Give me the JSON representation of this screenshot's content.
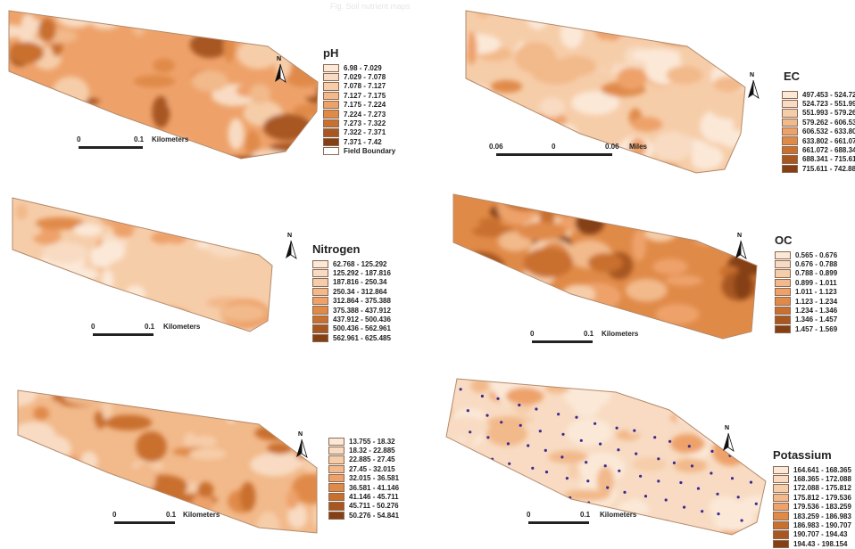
{
  "header": {
    "text": "Fig. Soil nutrient maps"
  },
  "maps": [
    {
      "id": "ph",
      "legend_title": "pH",
      "unit": "Kilometers",
      "scale_zero": "0",
      "scale_mid": "0.1",
      "extra_legend": "Field Boundary",
      "classes": [
        "6.98 - 7.029",
        "7.029 - 7.078",
        "7.078 - 7.127",
        "7.127 - 7.175",
        "7.175 - 7.224",
        "7.224 - 7.273",
        "7.273 - 7.322",
        "7.322 - 7.371",
        "7.371 - 7.42"
      ],
      "colors": [
        "#fbe8d7",
        "#f8dbc2",
        "#f6cda9",
        "#f2b98a",
        "#eea26a",
        "#e08a48",
        "#c9702f",
        "#a85720",
        "#853f13"
      ]
    },
    {
      "id": "ec",
      "legend_title": "EC",
      "unit": "Miles",
      "scale_left": "0.06",
      "scale_zero": "0",
      "scale_mid": "0.06",
      "classes": [
        "497.453 - 524.72",
        "524.723 - 551.99",
        "551.993 - 579.26",
        "579.262 - 606.53",
        "606.532 - 633.80",
        "633.802 - 661.07",
        "661.072 - 688.34",
        "688.341 - 715.61",
        "715.611 - 742.88"
      ],
      "colors": [
        "#fbe8d7",
        "#f8dbc2",
        "#f6cda9",
        "#f2b98a",
        "#eea26a",
        "#e08a48",
        "#c9702f",
        "#a85720",
        "#853f13"
      ]
    },
    {
      "id": "nitrogen",
      "legend_title": "Nitrogen",
      "unit": "Kilometers",
      "scale_zero": "0",
      "scale_mid": "0.1",
      "classes": [
        "62.768 - 125.292",
        "125.292 - 187.816",
        "187.816 - 250.34",
        "250.34 - 312.864",
        "312.864 - 375.388",
        "375.388 - 437.912",
        "437.912 - 500.436",
        "500.436 - 562.961",
        "562.961 - 625.485"
      ],
      "colors": [
        "#fbe8d7",
        "#f8dbc2",
        "#f6cda9",
        "#f2b98a",
        "#eea26a",
        "#e08a48",
        "#c9702f",
        "#a85720",
        "#853f13"
      ]
    },
    {
      "id": "oc",
      "legend_title": "OC",
      "unit": "Kilometers",
      "scale_zero": "0",
      "scale_mid": "0.1",
      "classes": [
        "0.565 - 0.676",
        "0.676 - 0.788",
        "0.788 - 0.899",
        "0.899 - 1.011",
        "1.011 - 1.123",
        "1.123 - 1.234",
        "1.234 - 1.346",
        "1.346 - 1.457",
        "1.457 - 1.569"
      ],
      "colors": [
        "#fbe8d7",
        "#f8dbc2",
        "#f6cda9",
        "#f2b98a",
        "#eea26a",
        "#e08a48",
        "#c9702f",
        "#a85720",
        "#853f13"
      ]
    },
    {
      "id": "phosphorus",
      "legend_title": "",
      "unit": "Kilometers",
      "scale_zero": "0",
      "scale_mid": "0.1",
      "classes": [
        "13.755 - 18.32",
        "18.32 - 22.885",
        "22.885 - 27.45",
        "27.45 - 32.015",
        "32.015 - 36.581",
        "36.581 - 41.146",
        "41.146 - 45.711",
        "45.711 - 50.276",
        "50.276 - 54.841"
      ],
      "colors": [
        "#fbe8d7",
        "#f8dbc2",
        "#f6cda9",
        "#f2b98a",
        "#eea26a",
        "#e08a48",
        "#c9702f",
        "#a85720",
        "#853f13"
      ]
    },
    {
      "id": "potassium",
      "legend_title": "Potassium",
      "unit": "Kilometers",
      "scale_zero": "0",
      "scale_mid": "0.1",
      "classes": [
        "164.641 - 168.365",
        "168.365 - 172.088",
        "172.088 - 175.812",
        "175.812 - 179.536",
        "179.536 - 183.259",
        "183.259 - 186.983",
        "186.983 - 190.707",
        "190.707 - 194.43",
        "194.43 - 198.154"
      ],
      "colors": [
        "#fbe8d7",
        "#f8dbc2",
        "#f6cda9",
        "#f2b98a",
        "#eea26a",
        "#e08a48",
        "#c9702f",
        "#a85720",
        "#853f13"
      ]
    }
  ],
  "north_label": "N"
}
